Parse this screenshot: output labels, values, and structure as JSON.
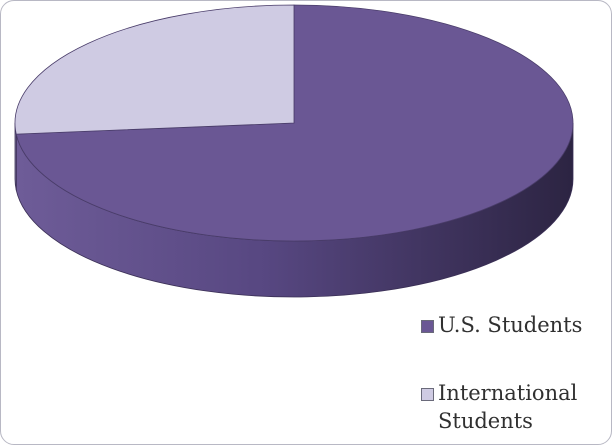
{
  "chart_data": {
    "type": "pie",
    "title": "",
    "series": [
      {
        "name": "U.S. Students",
        "value": 73.5,
        "color": "#6a5794"
      },
      {
        "name": "International Students",
        "value": 26.5,
        "color": "#cfcbe3"
      }
    ],
    "legend_position": "bottom-right",
    "style": "3d"
  },
  "legend": {
    "items": [
      {
        "label": "U.S. Students"
      },
      {
        "label": "International Students"
      }
    ]
  }
}
